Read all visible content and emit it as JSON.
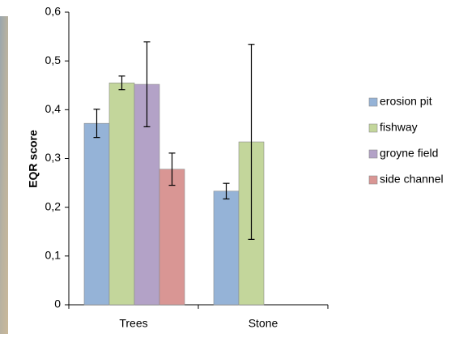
{
  "chart_data": {
    "type": "bar",
    "y_label": "EQR score",
    "categories": [
      "Trees",
      "Stone"
    ],
    "series": [
      {
        "name": "erosion pit",
        "color": "#95b3d7",
        "values": [
          0.372,
          0.233
        ],
        "errors": [
          0.029,
          0.016
        ]
      },
      {
        "name": "fishway",
        "color": "#c3d69b",
        "values": [
          0.455,
          0.334
        ],
        "errors": [
          0.014,
          0.2
        ]
      },
      {
        "name": "groyne field",
        "color": "#b3a2c7",
        "values": [
          0.452,
          null
        ],
        "errors": [
          0.087,
          null
        ]
      },
      {
        "name": "side channel",
        "color": "#d99694",
        "values": [
          0.278,
          null
        ],
        "errors": [
          0.033,
          null
        ]
      }
    ],
    "ylim": [
      0,
      0.6
    ],
    "yticks": [
      0,
      {
        "value": 0.1,
        "label": "0,1"
      },
      {
        "value": 0.2,
        "label": "0,2"
      },
      {
        "value": 0.3,
        "label": "0,3"
      },
      {
        "value": 0.4,
        "label": "0,4"
      },
      {
        "value": 0.5,
        "label": "0,5"
      },
      {
        "value": 0.6,
        "label": "0,6"
      }
    ],
    "legend": "right",
    "grid": false
  }
}
